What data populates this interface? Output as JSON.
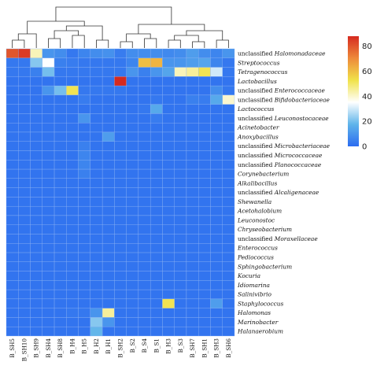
{
  "chart_data": {
    "type": "heatmap",
    "title": "",
    "columns": [
      "B_SH5",
      "B_SH10",
      "B_SH9",
      "B_SH4",
      "B_SH8",
      "B_H4",
      "B_H5",
      "B_H2",
      "B_H1",
      "B_SH2",
      "B_S2",
      "B_S4",
      "B_S1",
      "B_H3",
      "B_S3",
      "B_SH7",
      "B_SH1",
      "B_SH3",
      "B_SH6"
    ],
    "rows": [
      {
        "plain": "unclassified ",
        "italic": "Halomonadaceae"
      },
      {
        "plain": "",
        "italic": "Streptococcus"
      },
      {
        "plain": "",
        "italic": "Tetragenococcus"
      },
      {
        "plain": "",
        "italic": "Lactobacillus"
      },
      {
        "plain": "unclassified ",
        "italic": "Enterococcaceae"
      },
      {
        "plain": "unclassified ",
        "italic": "Bifidobacteriaceae"
      },
      {
        "plain": "",
        "italic": "Lactococcus"
      },
      {
        "plain": "unclassified ",
        "italic": "Leuconostocaceae"
      },
      {
        "plain": "",
        "italic": "Acinetobacter"
      },
      {
        "plain": "",
        "italic": "Anoxybacillus"
      },
      {
        "plain": "unclassified ",
        "italic": "Microbacteriaceae"
      },
      {
        "plain": "unclassified ",
        "italic": "Micrococcaceae"
      },
      {
        "plain": "unclassified ",
        "italic": "Planococcaceae"
      },
      {
        "plain": "",
        "italic": "Corynebacterium"
      },
      {
        "plain": "",
        "italic": "Alkalibacillus"
      },
      {
        "plain": "unclassified ",
        "italic": "Alcaligenaceae"
      },
      {
        "plain": "",
        "italic": "Shewanella"
      },
      {
        "plain": "",
        "italic": "Acetohalobium"
      },
      {
        "plain": "",
        "italic": "Leuconostoc"
      },
      {
        "plain": "",
        "italic": "Chryseobacterium"
      },
      {
        "plain": "unclassified ",
        "italic": "Moraxellaceae"
      },
      {
        "plain": "",
        "italic": "Enterococcus"
      },
      {
        "plain": "",
        "italic": "Pediococcus"
      },
      {
        "plain": "",
        "italic": "Sphingobacterium"
      },
      {
        "plain": "",
        "italic": "Kocuria"
      },
      {
        "plain": "",
        "italic": "Idiomarina"
      },
      {
        "plain": "",
        "italic": "Salinivibrio"
      },
      {
        "plain": "",
        "italic": "Staphylococcus"
      },
      {
        "plain": "",
        "italic": "Halomonas"
      },
      {
        "plain": "",
        "italic": "Marinobacter"
      },
      {
        "plain": "",
        "italic": "Halanaerobium"
      }
    ],
    "values": [
      [
        80,
        85,
        42,
        10,
        8,
        3,
        6,
        8,
        9,
        4,
        8,
        8,
        8,
        7,
        8,
        12,
        8,
        6,
        10
      ],
      [
        3,
        3,
        22,
        35,
        5,
        4,
        3,
        3,
        3,
        3,
        6,
        60,
        62,
        10,
        10,
        12,
        14,
        6,
        3
      ],
      [
        3,
        3,
        5,
        20,
        3,
        3,
        3,
        3,
        3,
        3,
        10,
        5,
        10,
        14,
        42,
        45,
        52,
        30,
        3
      ],
      [
        2,
        2,
        2,
        2,
        2,
        2,
        2,
        2,
        2,
        88,
        2,
        2,
        2,
        2,
        2,
        2,
        2,
        2,
        2
      ],
      [
        2,
        2,
        2,
        10,
        20,
        52,
        3,
        3,
        3,
        3,
        2,
        2,
        2,
        2,
        2,
        2,
        2,
        8,
        3
      ],
      [
        2,
        2,
        2,
        2,
        2,
        2,
        4,
        2,
        2,
        2,
        2,
        2,
        3,
        2,
        2,
        5,
        4,
        15,
        40
      ],
      [
        2,
        2,
        2,
        2,
        2,
        2,
        2,
        2,
        2,
        2,
        2,
        3,
        15,
        2,
        2,
        2,
        2,
        2,
        2
      ],
      [
        2,
        2,
        2,
        2,
        2,
        2,
        10,
        2,
        2,
        2,
        2,
        2,
        4,
        2,
        2,
        2,
        2,
        2,
        2
      ],
      [
        2,
        2,
        2,
        2,
        2,
        2,
        2,
        2,
        2,
        2,
        2,
        2,
        2,
        2,
        2,
        2,
        2,
        2,
        2
      ],
      [
        2,
        2,
        2,
        2,
        2,
        2,
        2,
        2,
        12,
        2,
        2,
        2,
        2,
        2,
        2,
        2,
        2,
        2,
        2
      ],
      [
        2,
        2,
        2,
        2,
        2,
        2,
        5,
        2,
        2,
        2,
        2,
        2,
        2,
        2,
        2,
        2,
        2,
        2,
        2
      ],
      [
        2,
        2,
        2,
        2,
        2,
        2,
        6,
        2,
        2,
        2,
        2,
        2,
        2,
        2,
        2,
        2,
        2,
        2,
        2
      ],
      [
        2,
        2,
        2,
        2,
        2,
        2,
        6,
        2,
        2,
        2,
        2,
        2,
        2,
        2,
        2,
        2,
        2,
        2,
        2
      ],
      [
        2,
        2,
        2,
        2,
        2,
        2,
        5,
        2,
        2,
        2,
        2,
        2,
        2,
        2,
        2,
        2,
        2,
        2,
        2
      ],
      [
        2,
        2,
        2,
        2,
        2,
        2,
        2,
        2,
        2,
        2,
        2,
        2,
        2,
        2,
        2,
        2,
        2,
        2,
        2
      ],
      [
        2,
        2,
        2,
        2,
        2,
        2,
        2,
        2,
        2,
        2,
        2,
        2,
        2,
        2,
        2,
        2,
        2,
        2,
        2
      ],
      [
        2,
        2,
        2,
        2,
        2,
        2,
        2,
        2,
        2,
        2,
        2,
        2,
        2,
        2,
        2,
        2,
        2,
        2,
        2
      ],
      [
        2,
        2,
        2,
        2,
        2,
        2,
        2,
        2,
        2,
        2,
        2,
        2,
        2,
        2,
        2,
        2,
        2,
        2,
        2
      ],
      [
        2,
        2,
        2,
        2,
        2,
        2,
        2,
        2,
        2,
        2,
        2,
        2,
        2,
        2,
        2,
        2,
        2,
        2,
        2
      ],
      [
        2,
        2,
        2,
        2,
        2,
        2,
        2,
        2,
        2,
        2,
        2,
        2,
        2,
        2,
        2,
        2,
        2,
        2,
        2
      ],
      [
        2,
        2,
        2,
        2,
        2,
        2,
        2,
        2,
        2,
        2,
        2,
        2,
        2,
        2,
        2,
        2,
        2,
        2,
        2
      ],
      [
        2,
        2,
        2,
        2,
        2,
        2,
        2,
        2,
        2,
        2,
        2,
        2,
        2,
        2,
        2,
        2,
        2,
        2,
        2
      ],
      [
        2,
        2,
        2,
        2,
        2,
        2,
        2,
        2,
        2,
        2,
        2,
        2,
        2,
        2,
        2,
        2,
        2,
        2,
        2
      ],
      [
        2,
        2,
        2,
        2,
        2,
        2,
        2,
        2,
        2,
        2,
        2,
        2,
        2,
        2,
        2,
        2,
        2,
        2,
        2
      ],
      [
        2,
        2,
        2,
        2,
        2,
        2,
        2,
        2,
        2,
        2,
        2,
        2,
        2,
        2,
        2,
        2,
        2,
        2,
        2
      ],
      [
        2,
        2,
        2,
        2,
        2,
        2,
        2,
        2,
        2,
        2,
        2,
        2,
        2,
        2,
        2,
        2,
        2,
        2,
        2
      ],
      [
        2,
        2,
        2,
        2,
        2,
        2,
        2,
        2,
        2,
        2,
        2,
        2,
        2,
        2,
        2,
        2,
        2,
        2,
        2
      ],
      [
        2,
        2,
        2,
        2,
        2,
        2,
        2,
        2,
        2,
        2,
        2,
        2,
        2,
        52,
        2,
        2,
        2,
        12,
        2
      ],
      [
        2,
        2,
        2,
        2,
        2,
        3,
        3,
        10,
        45,
        2,
        2,
        2,
        2,
        2,
        2,
        2,
        2,
        2,
        2
      ],
      [
        2,
        2,
        2,
        2,
        2,
        2,
        2,
        22,
        10,
        2,
        2,
        2,
        2,
        2,
        2,
        2,
        2,
        2,
        2
      ],
      [
        2,
        2,
        2,
        2,
        2,
        2,
        2,
        18,
        2,
        2,
        2,
        2,
        2,
        2,
        2,
        2,
        2,
        2,
        2
      ]
    ],
    "colorbar": {
      "ticks": [
        0,
        20,
        40,
        60,
        80
      ],
      "range": [
        0,
        88
      ],
      "colors": [
        "#2c6cf0",
        "#5fb4ea",
        "#ffffff",
        "#f0e24a",
        "#ee8a3a",
        "#d62a20"
      ]
    },
    "grid": true,
    "legend": "right"
  }
}
